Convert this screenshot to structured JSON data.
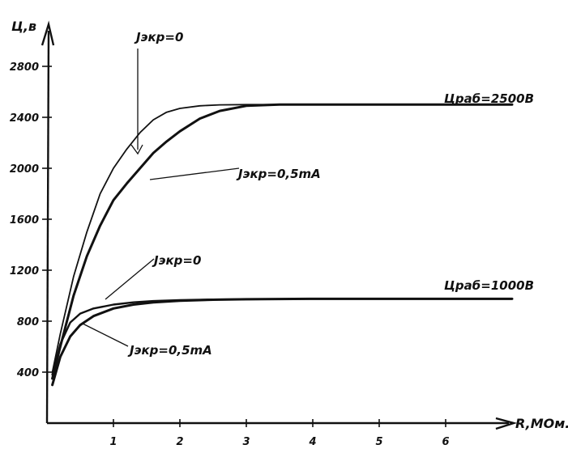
{
  "chart_data": {
    "type": "line",
    "title": "",
    "xlabel": "R,MOм.",
    "ylabel": "Ц,в",
    "xlim": [
      0,
      7.2
    ],
    "ylim": [
      0,
      3250
    ],
    "x_ticks": [
      1,
      2,
      3,
      4,
      5,
      6
    ],
    "y_ticks": [
      400,
      800,
      1200,
      1600,
      2000,
      2400,
      2800
    ],
    "x_tick_labels": [
      "1",
      "2",
      "3",
      "4",
      "5",
      "6"
    ],
    "y_tick_labels": [
      "400",
      "800",
      "1200",
      "1600",
      "2000",
      "2400",
      "2800"
    ],
    "grid": false,
    "series": [
      {
        "name": "Jэкр=0",
        "x": [
          0.08,
          0.2,
          0.4,
          0.6,
          0.8,
          1.0,
          1.2,
          1.4,
          1.6,
          1.8,
          2.0,
          2.3,
          2.6,
          3.0,
          3.5,
          4.0,
          5.0,
          6.0,
          7.0
        ],
        "y": [
          400,
          700,
          1150,
          1500,
          1800,
          2000,
          2150,
          2280,
          2380,
          2440,
          2470,
          2490,
          2498,
          2500,
          2500,
          2500,
          2500,
          2500,
          2500
        ]
      },
      {
        "name": "Jэкр=0,5mA",
        "x": [
          0.08,
          0.2,
          0.4,
          0.6,
          0.8,
          1.0,
          1.2,
          1.4,
          1.6,
          1.8,
          2.0,
          2.3,
          2.6,
          3.0,
          3.5,
          4.0,
          5.0,
          6.0,
          7.0
        ],
        "y": [
          350,
          600,
          1000,
          1310,
          1550,
          1750,
          1880,
          2000,
          2120,
          2210,
          2290,
          2390,
          2450,
          2490,
          2500,
          2500,
          2500,
          2500,
          2500
        ]
      },
      {
        "name": "Jэкр=0",
        "x": [
          0.08,
          0.2,
          0.35,
          0.5,
          0.7,
          1.0,
          1.3,
          1.6,
          2.0,
          2.5,
          3.0,
          4.0,
          5.0,
          6.0,
          7.0
        ],
        "y": [
          380,
          620,
          790,
          860,
          900,
          930,
          948,
          958,
          965,
          970,
          972,
          975,
          975,
          975,
          975
        ]
      },
      {
        "name": "Jэкр=0,5mA",
        "x": [
          0.08,
          0.2,
          0.35,
          0.5,
          0.7,
          1.0,
          1.3,
          1.6,
          2.0,
          2.5,
          3.0,
          4.0,
          5.0,
          6.0,
          7.0
        ],
        "y": [
          300,
          520,
          680,
          770,
          840,
          900,
          930,
          948,
          960,
          968,
          972,
          975,
          975,
          975,
          975
        ]
      }
    ],
    "annotations": [
      {
        "text": "Jэкр=0",
        "points_to_series": 0
      },
      {
        "text": "Jэкр=0,5mA",
        "points_to_series": 1
      },
      {
        "text": "Jэкр=0",
        "points_to_series": 2
      },
      {
        "text": "Jэкр=0,5mA",
        "points_to_series": 3
      },
      {
        "text": "Цраб=2500В",
        "labels_series_group": "upper"
      },
      {
        "text": "Цраб=1000В",
        "labels_series_group": "lower"
      }
    ]
  }
}
